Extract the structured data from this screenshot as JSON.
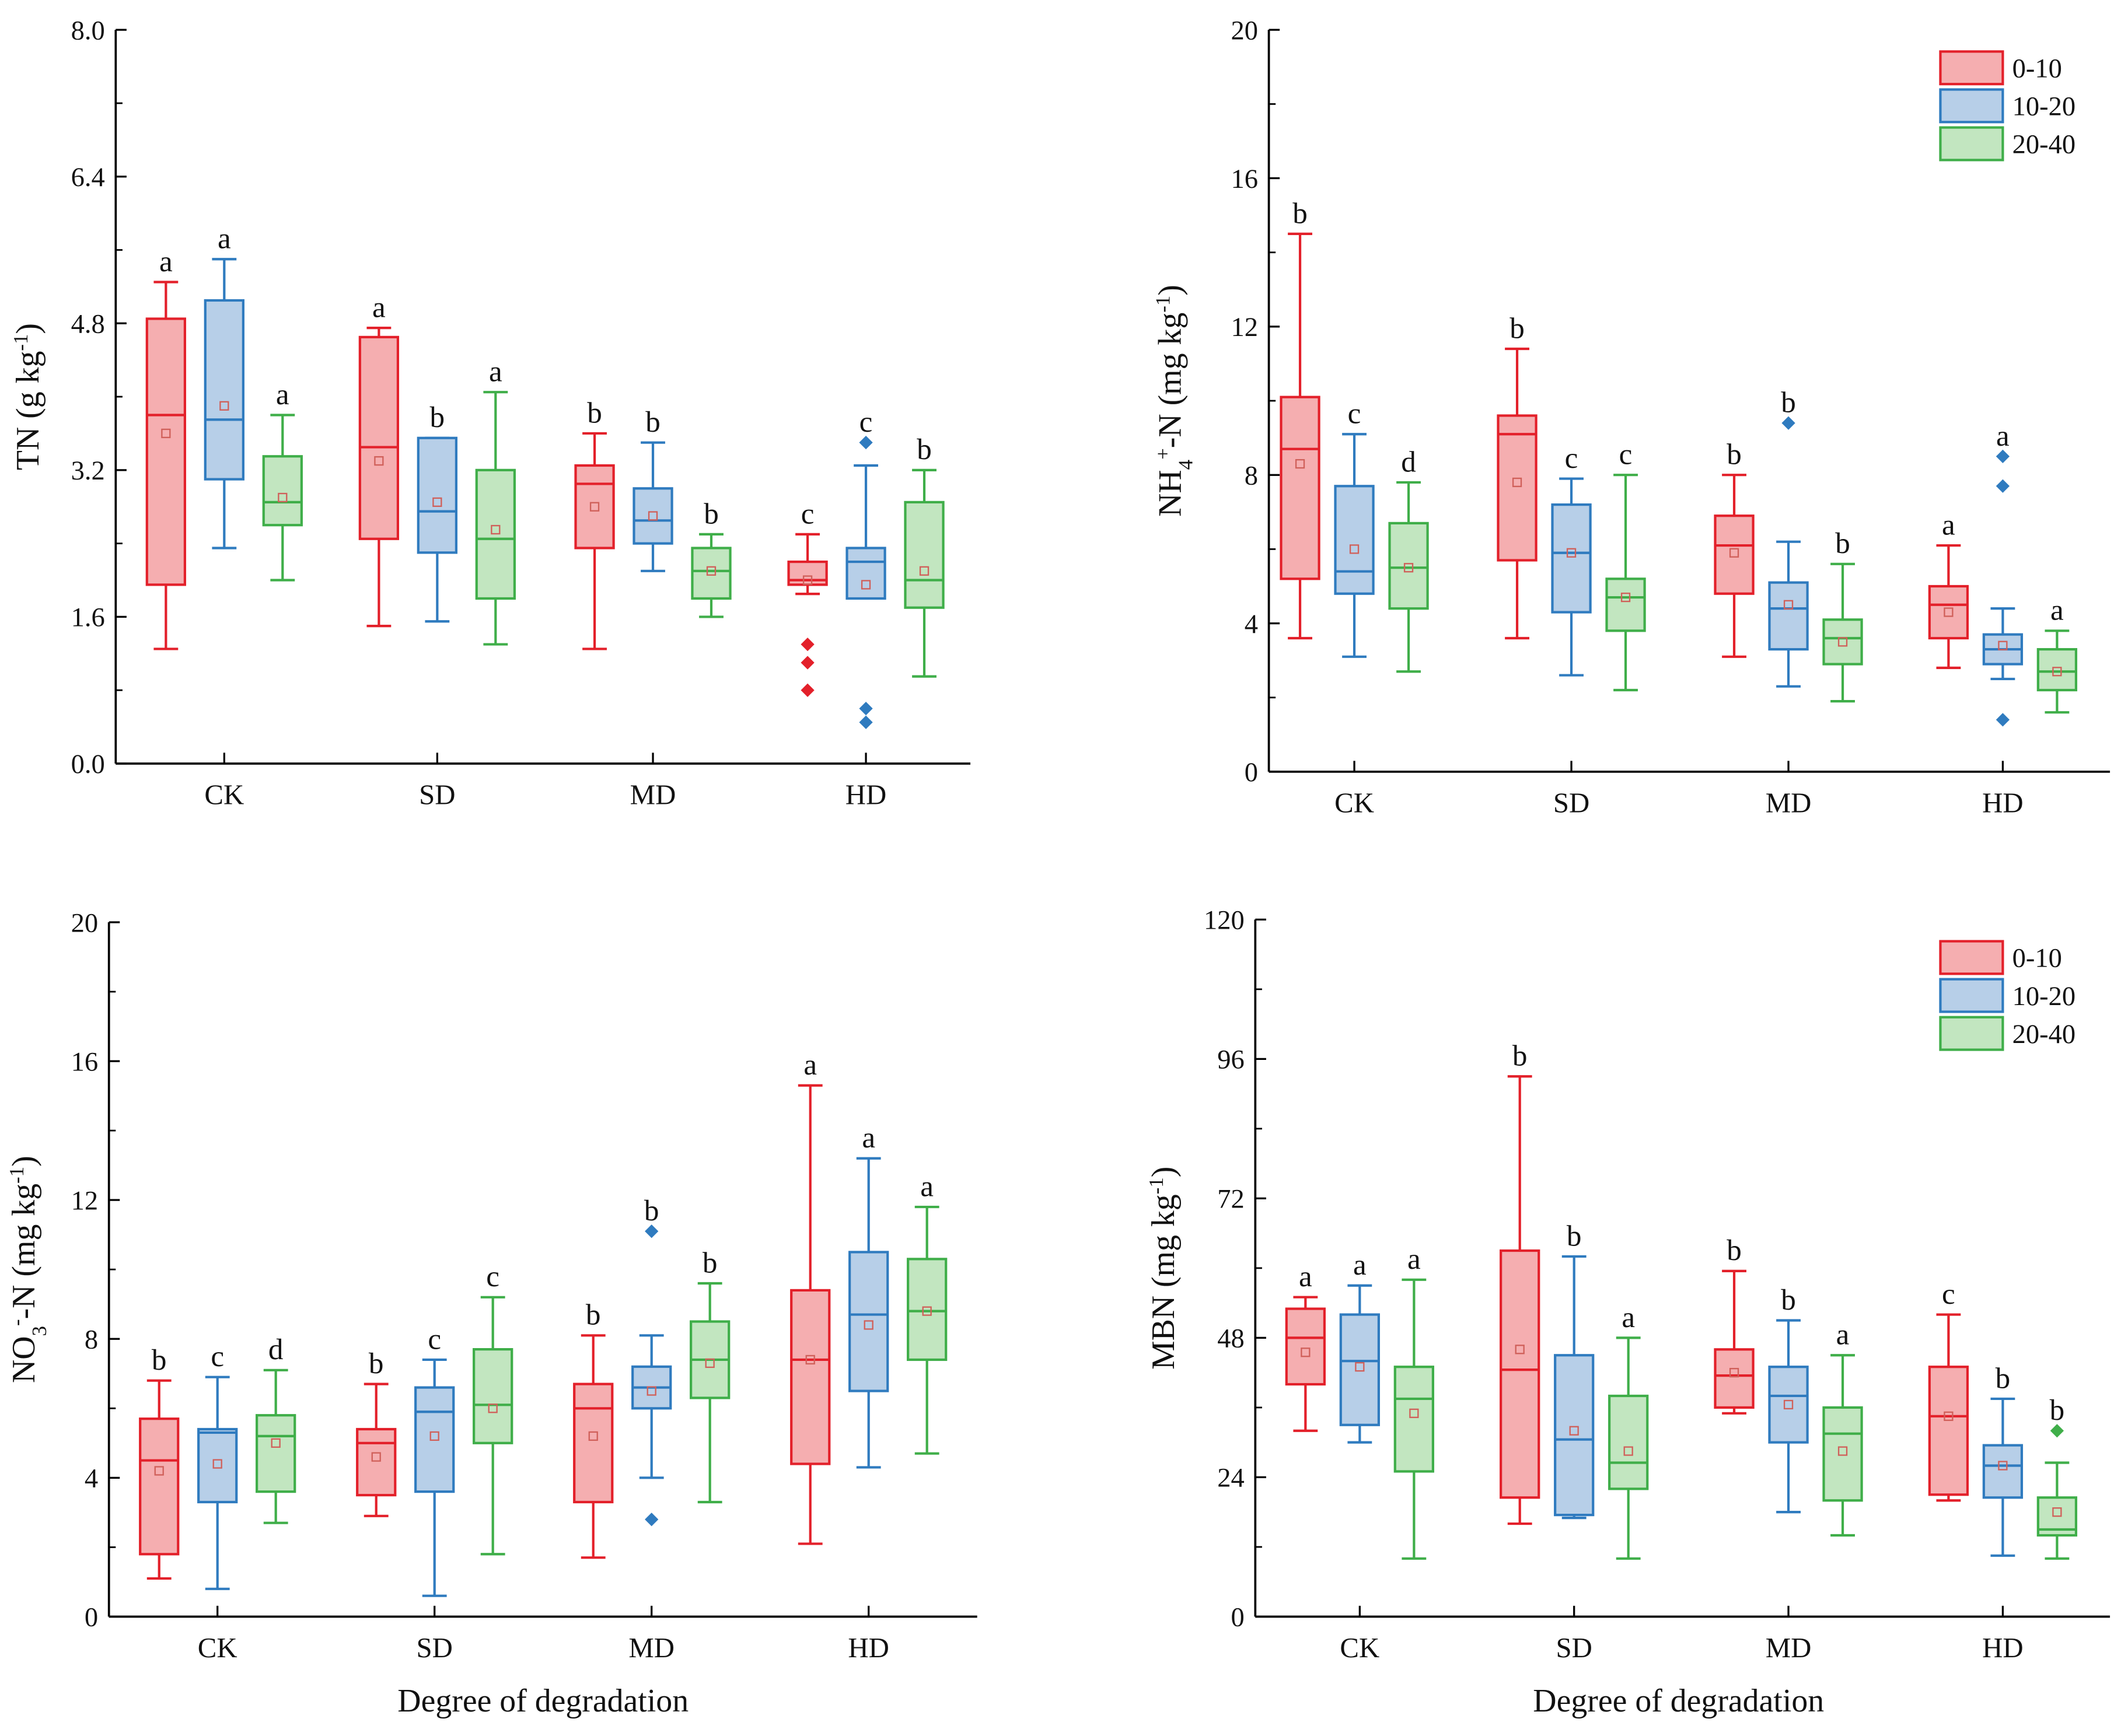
{
  "colors": {
    "0-10": {
      "stroke": "#e3202a",
      "fill": "#f5aeb0"
    },
    "10-20": {
      "stroke": "#2f7bbf",
      "fill": "#b7cfe8"
    },
    "20-40": {
      "stroke": "#3fae49",
      "fill": "#c2e6c0"
    },
    "mean_marker": "#d0605a"
  },
  "chart_data": [
    {
      "type": "box",
      "ylabel_parts": [
        [
          "TN (g kg",
          ""
        ],
        [
          "-1",
          "sup"
        ],
        [
          ")",
          ""
        ]
      ],
      "xlabel": "",
      "categories": [
        "CK",
        "SD",
        "MD",
        "HD"
      ],
      "ylim": [
        0,
        8
      ],
      "yticks": [
        "0.0",
        "1.6",
        "3.2",
        "4.8",
        "6.4",
        "8.0"
      ],
      "legend": null,
      "series": [
        {
          "name": "0-10",
          "boxes": [
            {
              "min": 1.25,
              "q1": 1.95,
              "median": 3.8,
              "q3": 4.85,
              "max": 5.25,
              "mean": 3.6,
              "letter": "a",
              "outliers": []
            },
            {
              "min": 1.5,
              "q1": 2.45,
              "median": 3.45,
              "q3": 4.65,
              "max": 4.75,
              "mean": 3.3,
              "letter": "a",
              "outliers": []
            },
            {
              "min": 1.25,
              "q1": 2.35,
              "median": 3.05,
              "q3": 3.25,
              "max": 3.6,
              "mean": 2.8,
              "letter": "b",
              "outliers": []
            },
            {
              "min": 1.85,
              "q1": 1.95,
              "median": 2.0,
              "q3": 2.2,
              "max": 2.5,
              "mean": 2.0,
              "letter": "c",
              "outliers": [
                1.3,
                1.1,
                0.8
              ]
            }
          ]
        },
        {
          "name": "10-20",
          "boxes": [
            {
              "min": 2.35,
              "q1": 3.1,
              "median": 3.75,
              "q3": 5.05,
              "max": 5.5,
              "mean": 3.9,
              "letter": "a",
              "outliers": []
            },
            {
              "min": 1.55,
              "q1": 2.3,
              "median": 2.75,
              "q3": 3.55,
              "max": 3.55,
              "mean": 2.85,
              "letter": "b",
              "outliers": []
            },
            {
              "min": 2.1,
              "q1": 2.4,
              "median": 2.65,
              "q3": 3.0,
              "max": 3.5,
              "mean": 2.7,
              "letter": "b",
              "outliers": []
            },
            {
              "min": 1.8,
              "q1": 1.8,
              "median": 2.2,
              "q3": 2.35,
              "max": 3.25,
              "mean": 1.95,
              "letter": "c",
              "outliers": [
                3.5,
                0.6,
                0.45
              ]
            }
          ]
        },
        {
          "name": "20-40",
          "boxes": [
            {
              "min": 2.0,
              "q1": 2.6,
              "median": 2.85,
              "q3": 3.35,
              "max": 3.8,
              "mean": 2.9,
              "letter": "a",
              "outliers": []
            },
            {
              "min": 1.3,
              "q1": 1.8,
              "median": 2.45,
              "q3": 3.2,
              "max": 4.05,
              "mean": 2.55,
              "letter": "a",
              "outliers": []
            },
            {
              "min": 1.6,
              "q1": 1.8,
              "median": 2.1,
              "q3": 2.35,
              "max": 2.5,
              "mean": 2.1,
              "letter": "b",
              "outliers": []
            },
            {
              "min": 0.95,
              "q1": 1.7,
              "median": 2.0,
              "q3": 2.85,
              "max": 3.2,
              "mean": 2.1,
              "letter": "b",
              "outliers": []
            }
          ]
        }
      ]
    },
    {
      "type": "box",
      "ylabel_parts": [
        [
          "NH",
          ""
        ],
        [
          "4",
          "sub"
        ],
        [
          "+",
          "sup"
        ],
        [
          "-N (mg kg",
          ""
        ],
        [
          "-1",
          "sup"
        ],
        [
          ")",
          ""
        ]
      ],
      "xlabel": "",
      "categories": [
        "CK",
        "SD",
        "MD",
        "HD"
      ],
      "ylim": [
        0,
        20
      ],
      "yticks": [
        "0",
        "4",
        "8",
        "12",
        "16",
        "20"
      ],
      "legend": "top-right",
      "series": [
        {
          "name": "0-10",
          "boxes": [
            {
              "min": 3.6,
              "q1": 5.2,
              "median": 8.7,
              "q3": 10.1,
              "max": 14.5,
              "mean": 8.3,
              "letter": "b",
              "outliers": []
            },
            {
              "min": 3.6,
              "q1": 5.7,
              "median": 9.1,
              "q3": 9.6,
              "max": 11.4,
              "mean": 7.8,
              "letter": "b",
              "outliers": []
            },
            {
              "min": 3.1,
              "q1": 4.8,
              "median": 6.1,
              "q3": 6.9,
              "max": 8.0,
              "mean": 5.9,
              "letter": "b",
              "outliers": []
            },
            {
              "min": 2.8,
              "q1": 3.6,
              "median": 4.5,
              "q3": 5.0,
              "max": 6.1,
              "mean": 4.3,
              "letter": "a",
              "outliers": []
            }
          ]
        },
        {
          "name": "10-20",
          "boxes": [
            {
              "min": 3.1,
              "q1": 4.8,
              "median": 5.4,
              "q3": 7.7,
              "max": 9.1,
              "mean": 6.0,
              "letter": "c",
              "outliers": []
            },
            {
              "min": 2.6,
              "q1": 4.3,
              "median": 5.9,
              "q3": 7.2,
              "max": 7.9,
              "mean": 5.9,
              "letter": "c",
              "outliers": []
            },
            {
              "min": 2.3,
              "q1": 3.3,
              "median": 4.4,
              "q3": 5.1,
              "max": 6.2,
              "mean": 4.5,
              "letter": "b",
              "outliers": [
                9.4
              ]
            },
            {
              "min": 2.5,
              "q1": 2.9,
              "median": 3.3,
              "q3": 3.7,
              "max": 4.4,
              "mean": 3.4,
              "letter": "a",
              "outliers": [
                8.5,
                7.7,
                1.4
              ]
            }
          ]
        },
        {
          "name": "20-40",
          "boxes": [
            {
              "min": 2.7,
              "q1": 4.4,
              "median": 5.5,
              "q3": 6.7,
              "max": 7.8,
              "mean": 5.5,
              "letter": "d",
              "outliers": []
            },
            {
              "min": 2.2,
              "q1": 3.8,
              "median": 4.7,
              "q3": 5.2,
              "max": 8.0,
              "mean": 4.7,
              "letter": "c",
              "outliers": []
            },
            {
              "min": 1.9,
              "q1": 2.9,
              "median": 3.6,
              "q3": 4.1,
              "max": 5.6,
              "mean": 3.5,
              "letter": "b",
              "outliers": []
            },
            {
              "min": 1.6,
              "q1": 2.2,
              "median": 2.7,
              "q3": 3.3,
              "max": 3.8,
              "mean": 2.7,
              "letter": "a",
              "outliers": []
            }
          ]
        }
      ]
    },
    {
      "type": "box",
      "ylabel_parts": [
        [
          "NO",
          ""
        ],
        [
          "3",
          "sub"
        ],
        [
          "-",
          "sup"
        ],
        [
          "-N (mg kg",
          ""
        ],
        [
          "-1",
          "sup"
        ],
        [
          ")",
          ""
        ]
      ],
      "xlabel": "Degree of degradation",
      "categories": [
        "CK",
        "SD",
        "MD",
        "HD"
      ],
      "ylim": [
        0,
        20
      ],
      "yticks": [
        "0",
        "4",
        "8",
        "12",
        "16",
        "20"
      ],
      "legend": null,
      "series": [
        {
          "name": "0-10",
          "boxes": [
            {
              "min": 1.1,
              "q1": 1.8,
              "median": 4.5,
              "q3": 5.7,
              "max": 6.8,
              "mean": 4.2,
              "letter": "b",
              "outliers": []
            },
            {
              "min": 2.9,
              "q1": 3.5,
              "median": 5.0,
              "q3": 5.4,
              "max": 6.7,
              "mean": 4.6,
              "letter": "b",
              "outliers": []
            },
            {
              "min": 1.7,
              "q1": 3.3,
              "median": 6.0,
              "q3": 6.7,
              "max": 8.1,
              "mean": 5.2,
              "letter": "b",
              "outliers": []
            },
            {
              "min": 2.1,
              "q1": 4.4,
              "median": 7.4,
              "q3": 9.4,
              "max": 15.3,
              "mean": 7.4,
              "letter": "a",
              "outliers": []
            }
          ]
        },
        {
          "name": "10-20",
          "boxes": [
            {
              "min": 0.8,
              "q1": 3.3,
              "median": 5.3,
              "q3": 5.4,
              "max": 6.9,
              "mean": 4.4,
              "letter": "c",
              "outliers": []
            },
            {
              "min": 0.6,
              "q1": 3.6,
              "median": 5.9,
              "q3": 6.6,
              "max": 7.4,
              "mean": 5.2,
              "letter": "c",
              "outliers": []
            },
            {
              "min": 4.0,
              "q1": 6.0,
              "median": 6.6,
              "q3": 7.2,
              "max": 8.1,
              "mean": 6.5,
              "letter": "b",
              "outliers": [
                11.1,
                2.8
              ]
            },
            {
              "min": 4.3,
              "q1": 6.5,
              "median": 8.7,
              "q3": 10.5,
              "max": 13.2,
              "mean": 8.4,
              "letter": "a",
              "outliers": []
            }
          ]
        },
        {
          "name": "20-40",
          "boxes": [
            {
              "min": 2.7,
              "q1": 3.6,
              "median": 5.2,
              "q3": 5.8,
              "max": 7.1,
              "mean": 5.0,
              "letter": "d",
              "outliers": []
            },
            {
              "min": 1.8,
              "q1": 5.0,
              "median": 6.1,
              "q3": 7.7,
              "max": 9.2,
              "mean": 6.0,
              "letter": "c",
              "outliers": []
            },
            {
              "min": 3.3,
              "q1": 6.3,
              "median": 7.4,
              "q3": 8.5,
              "max": 9.6,
              "mean": 7.3,
              "letter": "b",
              "outliers": []
            },
            {
              "min": 4.7,
              "q1": 7.4,
              "median": 8.8,
              "q3": 10.3,
              "max": 11.8,
              "mean": 8.8,
              "letter": "a",
              "outliers": []
            }
          ]
        }
      ]
    },
    {
      "type": "box",
      "ylabel_parts": [
        [
          "MBN (mg kg",
          ""
        ],
        [
          "-1",
          "sup"
        ],
        [
          ")",
          ""
        ]
      ],
      "xlabel": "Degree of degradation",
      "categories": [
        "CK",
        "SD",
        "MD",
        "HD"
      ],
      "ylim": [
        0,
        120
      ],
      "yticks": [
        "0",
        "24",
        "48",
        "72",
        "96",
        "120"
      ],
      "legend": "top-right",
      "series": [
        {
          "name": "0-10",
          "boxes": [
            {
              "min": 32,
              "q1": 40,
              "median": 48,
              "q3": 53,
              "max": 55,
              "mean": 45.5,
              "letter": "a",
              "outliers": []
            },
            {
              "min": 16,
              "q1": 20.5,
              "median": 42.5,
              "q3": 63,
              "max": 93,
              "mean": 46,
              "letter": "b",
              "outliers": []
            },
            {
              "min": 35,
              "q1": 36,
              "median": 41.5,
              "q3": 46,
              "max": 59.5,
              "mean": 42,
              "letter": "b",
              "outliers": []
            },
            {
              "min": 20,
              "q1": 21,
              "median": 34.5,
              "q3": 43,
              "max": 52,
              "mean": 34.5,
              "letter": "c",
              "outliers": []
            }
          ]
        },
        {
          "name": "10-20",
          "boxes": [
            {
              "min": 30,
              "q1": 33,
              "median": 44,
              "q3": 52,
              "max": 57,
              "mean": 43,
              "letter": "a",
              "outliers": []
            },
            {
              "min": 17,
              "q1": 17.5,
              "median": 30.5,
              "q3": 45,
              "max": 62,
              "mean": 32,
              "letter": "b",
              "outliers": []
            },
            {
              "min": 18,
              "q1": 30,
              "median": 38,
              "q3": 43,
              "max": 51,
              "mean": 36.5,
              "letter": "b",
              "outliers": []
            },
            {
              "min": 10.5,
              "q1": 20.5,
              "median": 26,
              "q3": 29.5,
              "max": 37.5,
              "mean": 26,
              "letter": "b",
              "outliers": []
            }
          ]
        },
        {
          "name": "20-40",
          "boxes": [
            {
              "min": 10,
              "q1": 25,
              "median": 37.5,
              "q3": 43,
              "max": 58,
              "mean": 35,
              "letter": "a",
              "outliers": []
            },
            {
              "min": 10,
              "q1": 22,
              "median": 26.5,
              "q3": 38,
              "max": 48,
              "mean": 28.5,
              "letter": "a",
              "outliers": []
            },
            {
              "min": 14,
              "q1": 20,
              "median": 31.5,
              "q3": 36,
              "max": 45,
              "mean": 28.5,
              "letter": "a",
              "outliers": []
            },
            {
              "min": 10,
              "q1": 14,
              "median": 15,
              "q3": 20.5,
              "max": 26.5,
              "mean": 18,
              "letter": "b",
              "outliers": [
                32
              ]
            }
          ]
        }
      ]
    }
  ]
}
